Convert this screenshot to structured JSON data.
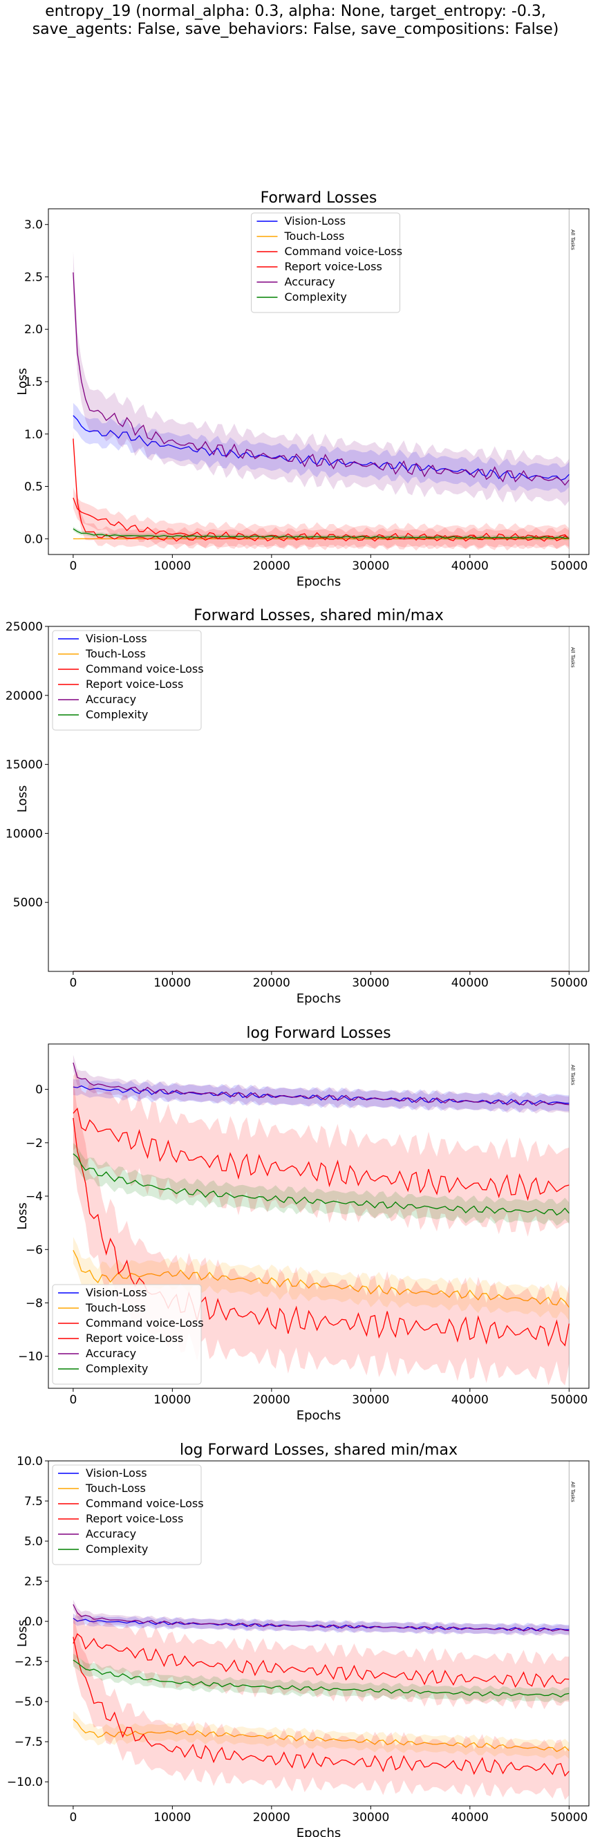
{
  "figure_title_lines": [
    "entropy_19 (normal_alpha: 0.3, alpha: None, target_entropy: -0.3,",
    "save_agents: False, save_behaviors: False, save_compositions: False)"
  ],
  "colors": {
    "Vision-Loss": "#0000ff",
    "Touch-Loss": "#ffa500",
    "Command voice-Loss": "#ff0000",
    "Report voice-Loss": "#ff0000",
    "Accuracy": "#800080",
    "Complexity": "#008000"
  },
  "chart_data": [
    {
      "type": "line",
      "title": "Forward Losses",
      "xlabel": "Epochs",
      "ylabel": "Loss",
      "xlim": [
        -2500,
        52000
      ],
      "ylim": [
        -0.15,
        3.15
      ],
      "xticks": [
        0,
        10000,
        20000,
        30000,
        40000,
        50000
      ],
      "yticks": [
        0.0,
        0.5,
        1.0,
        1.5,
        2.0,
        2.5,
        3.0
      ],
      "ytick_labels": [
        "0.0",
        "0.5",
        "1.0",
        "1.5",
        "2.0",
        "2.5",
        "3.0"
      ],
      "legend": "upper center",
      "vline": {
        "x": 50000,
        "label": "All Tasks"
      },
      "series": [
        {
          "name": "Vision-Loss",
          "x": [
            0,
            1000,
            3000,
            5000,
            7500,
            10000,
            15000,
            20000,
            25000,
            30000,
            35000,
            40000,
            45000,
            50000
          ],
          "values": [
            1.18,
            1.05,
            1.0,
            1.0,
            0.92,
            0.88,
            0.82,
            0.78,
            0.74,
            0.71,
            0.68,
            0.64,
            0.6,
            0.58
          ],
          "band": 0.12
        },
        {
          "name": "Touch-Loss",
          "x": [
            0,
            10000,
            20000,
            30000,
            40000,
            50000
          ],
          "values": [
            0.0,
            0.0,
            0.0,
            0.0,
            0.0,
            0.0
          ],
          "band": 0.003
        },
        {
          "name": "Command voice-Loss",
          "x": [
            0,
            500,
            1500,
            3000,
            5000,
            7500,
            10000,
            15000,
            20000,
            30000,
            40000,
            50000
          ],
          "values": [
            0.38,
            0.28,
            0.22,
            0.18,
            0.12,
            0.08,
            0.05,
            0.03,
            0.025,
            0.02,
            0.02,
            0.02
          ],
          "band": 0.1
        },
        {
          "name": "Report voice-Loss",
          "x": [
            0,
            500,
            1500,
            3000,
            5000,
            10000,
            20000,
            30000,
            40000,
            50000
          ],
          "values": [
            0.97,
            0.2,
            0.06,
            0.02,
            0.01,
            0.005,
            0.004,
            0.004,
            0.004,
            0.004
          ],
          "band": 0.08
        },
        {
          "name": "Accuracy",
          "x": [
            0,
            500,
            1500,
            3000,
            5000,
            7500,
            10000,
            15000,
            20000,
            25000,
            30000,
            35000,
            40000,
            45000,
            50000
          ],
          "values": [
            2.58,
            1.6,
            1.25,
            1.18,
            1.12,
            1.0,
            0.92,
            0.85,
            0.78,
            0.74,
            0.7,
            0.66,
            0.63,
            0.6,
            0.55
          ],
          "band": 0.2
        },
        {
          "name": "Complexity",
          "x": [
            0,
            1000,
            3000,
            5000,
            10000,
            20000,
            30000,
            40000,
            50000
          ],
          "values": [
            0.09,
            0.05,
            0.035,
            0.03,
            0.025,
            0.02,
            0.015,
            0.012,
            0.01
          ],
          "band": 0.02
        }
      ]
    },
    {
      "type": "line",
      "title": "Forward Losses, shared min/max",
      "xlabel": "Epochs",
      "ylabel": "Loss",
      "xlim": [
        -2500,
        52000
      ],
      "ylim": [
        0,
        25000
      ],
      "xticks": [
        0,
        10000,
        20000,
        30000,
        40000,
        50000
      ],
      "yticks": [
        5000,
        10000,
        15000,
        20000,
        25000
      ],
      "ytick_labels": [
        "5000",
        "10000",
        "15000",
        "20000",
        "25000"
      ],
      "legend": "upper left",
      "vline": {
        "x": 50000,
        "label": "All Tasks"
      },
      "series": [
        {
          "name": "Vision-Loss",
          "x": [
            0,
            50000
          ],
          "values": [
            1.1,
            0.6
          ],
          "band": 0
        },
        {
          "name": "Touch-Loss",
          "x": [
            0,
            50000
          ],
          "values": [
            0.0,
            0.0
          ],
          "band": 0
        },
        {
          "name": "Command voice-Loss",
          "x": [
            0,
            50000
          ],
          "values": [
            0.3,
            0.02
          ],
          "band": 0
        },
        {
          "name": "Report voice-Loss",
          "x": [
            0,
            50000
          ],
          "values": [
            0.9,
            0.004
          ],
          "band": 0
        },
        {
          "name": "Accuracy",
          "x": [
            0,
            50000
          ],
          "values": [
            2.5,
            0.55
          ],
          "band": 0
        },
        {
          "name": "Complexity",
          "x": [
            0,
            50000
          ],
          "values": [
            0.09,
            0.01
          ],
          "band": 0
        }
      ]
    },
    {
      "type": "line",
      "title": "log Forward Losses",
      "xlabel": "Epochs",
      "ylabel": "Loss",
      "xlim": [
        -2500,
        52000
      ],
      "ylim": [
        -11.2,
        1.7
      ],
      "xticks": [
        0,
        10000,
        20000,
        30000,
        40000,
        50000
      ],
      "yticks": [
        -10,
        -8,
        -6,
        -4,
        -2,
        0
      ],
      "ytick_labels": [
        "−10",
        "−8",
        "−6",
        "−4",
        "−2",
        "0"
      ],
      "legend": "lower left",
      "vline": {
        "x": 50000,
        "label": "All Tasks"
      },
      "series": [
        {
          "name": "Vision-Loss",
          "x": [
            0,
            1000,
            5000,
            10000,
            20000,
            30000,
            40000,
            50000
          ],
          "values": [
            0.15,
            0.05,
            -0.05,
            -0.12,
            -0.25,
            -0.35,
            -0.45,
            -0.5
          ],
          "band": 0.3
        },
        {
          "name": "Touch-Loss",
          "x": [
            0,
            1000,
            2500,
            5000,
            10000,
            20000,
            30000,
            40000,
            50000
          ],
          "values": [
            -6.1,
            -6.8,
            -7.1,
            -7.0,
            -6.9,
            -7.2,
            -7.5,
            -7.7,
            -8.0
          ],
          "band": 0.5
        },
        {
          "name": "Command voice-Loss",
          "x": [
            0,
            1000,
            3000,
            5000,
            10000,
            15000,
            20000,
            30000,
            40000,
            50000
          ],
          "values": [
            -0.95,
            -1.3,
            -1.5,
            -1.8,
            -2.4,
            -2.8,
            -2.9,
            -3.3,
            -3.6,
            -3.7
          ],
          "band": 1.4
        },
        {
          "name": "Report voice-Loss",
          "x": [
            0,
            1000,
            2500,
            5000,
            7500,
            10000,
            15000,
            20000,
            30000,
            40000,
            50000
          ],
          "values": [
            -1.0,
            -3.5,
            -5.2,
            -6.7,
            -7.5,
            -8.0,
            -8.3,
            -8.6,
            -8.8,
            -9.0,
            -9.2
          ],
          "band": 1.5
        },
        {
          "name": "Accuracy",
          "x": [
            0,
            500,
            2000,
            5000,
            10000,
            20000,
            30000,
            40000,
            50000
          ],
          "values": [
            0.95,
            0.45,
            0.2,
            0.05,
            -0.1,
            -0.25,
            -0.35,
            -0.45,
            -0.55
          ],
          "band": 0.3
        },
        {
          "name": "Complexity",
          "x": [
            0,
            1000,
            3000,
            5000,
            10000,
            20000,
            30000,
            40000,
            50000
          ],
          "values": [
            -2.4,
            -2.9,
            -3.2,
            -3.4,
            -3.8,
            -4.1,
            -4.3,
            -4.5,
            -4.6
          ],
          "band": 0.4
        }
      ]
    },
    {
      "type": "line",
      "title": "log Forward Losses, shared min/max",
      "xlabel": "Epochs",
      "ylabel": "Loss",
      "xlim": [
        -2500,
        52000
      ],
      "ylim": [
        -11.5,
        10.0
      ],
      "xticks": [
        0,
        10000,
        20000,
        30000,
        40000,
        50000
      ],
      "yticks": [
        -10.0,
        -7.5,
        -5.0,
        -2.5,
        0.0,
        2.5,
        5.0,
        7.5,
        10.0
      ],
      "ytick_labels": [
        "−10.0",
        "−7.5",
        "−5.0",
        "−2.5",
        "0.0",
        "2.5",
        "5.0",
        "7.5",
        "10.0"
      ],
      "legend": "upper left",
      "vline": {
        "x": 50000,
        "label": "All Tasks"
      },
      "series": [
        {
          "name": "Vision-Loss",
          "x": [
            0,
            1000,
            5000,
            10000,
            20000,
            30000,
            40000,
            50000
          ],
          "values": [
            0.15,
            0.05,
            -0.05,
            -0.12,
            -0.25,
            -0.35,
            -0.45,
            -0.5
          ],
          "band": 0.3
        },
        {
          "name": "Touch-Loss",
          "x": [
            0,
            1000,
            2500,
            5000,
            10000,
            20000,
            30000,
            40000,
            50000
          ],
          "values": [
            -6.1,
            -6.8,
            -7.1,
            -7.0,
            -6.9,
            -7.2,
            -7.5,
            -7.7,
            -8.0
          ],
          "band": 0.5
        },
        {
          "name": "Command voice-Loss",
          "x": [
            0,
            1000,
            3000,
            5000,
            10000,
            15000,
            20000,
            30000,
            40000,
            50000
          ],
          "values": [
            -0.95,
            -1.3,
            -1.5,
            -1.8,
            -2.4,
            -2.8,
            -2.9,
            -3.3,
            -3.6,
            -3.7
          ],
          "band": 1.4
        },
        {
          "name": "Report voice-Loss",
          "x": [
            0,
            1000,
            2500,
            5000,
            7500,
            10000,
            15000,
            20000,
            30000,
            40000,
            50000
          ],
          "values": [
            -1.0,
            -3.5,
            -5.2,
            -6.7,
            -7.5,
            -8.0,
            -8.3,
            -8.6,
            -8.8,
            -9.0,
            -9.2
          ],
          "band": 1.5
        },
        {
          "name": "Accuracy",
          "x": [
            0,
            500,
            2000,
            5000,
            10000,
            20000,
            30000,
            40000,
            50000
          ],
          "values": [
            0.95,
            0.45,
            0.2,
            0.05,
            -0.1,
            -0.25,
            -0.35,
            -0.45,
            -0.55
          ],
          "band": 0.3
        },
        {
          "name": "Complexity",
          "x": [
            0,
            1000,
            3000,
            5000,
            10000,
            20000,
            30000,
            40000,
            50000
          ],
          "values": [
            -2.4,
            -2.9,
            -3.2,
            -3.4,
            -3.8,
            -4.1,
            -4.3,
            -4.5,
            -4.6
          ],
          "band": 0.4
        }
      ]
    }
  ]
}
